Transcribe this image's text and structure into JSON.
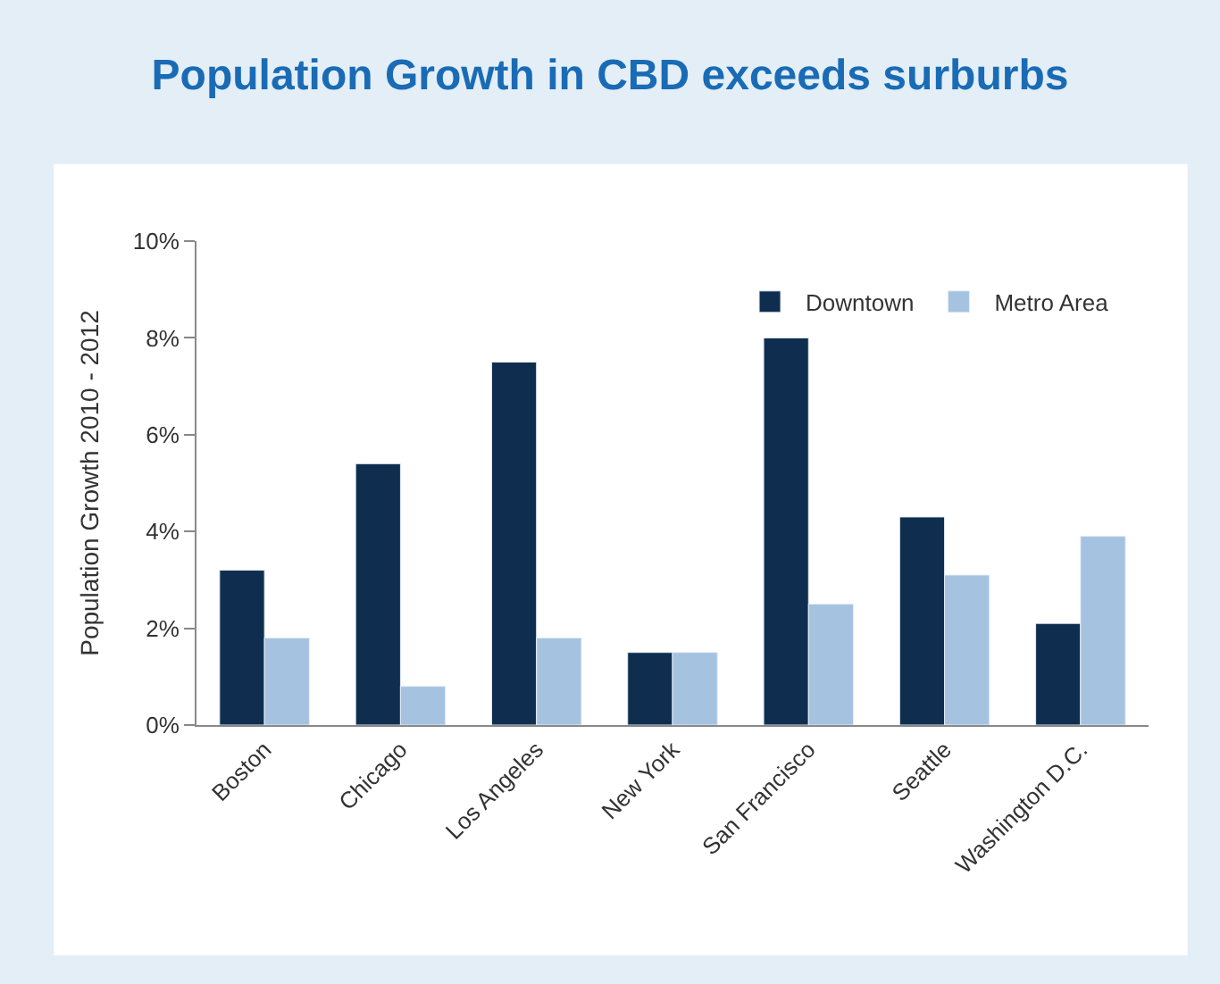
{
  "chart_data": {
    "type": "bar",
    "title": "Population Growth in CBD exceeds surburbs",
    "ylabel": "Population Growth 2010 - 2012",
    "categories": [
      "Boston",
      "Chicago",
      "Los Angeles",
      "New York",
      "San Francisco",
      "Seattle",
      "Washington D.C."
    ],
    "series": [
      {
        "name": "Downtown",
        "color": "#0f2e4f",
        "values": [
          3.2,
          5.4,
          7.5,
          1.5,
          8.0,
          4.3,
          2.1
        ]
      },
      {
        "name": "Metro Area",
        "color": "#a5c3e0",
        "values": [
          1.8,
          0.8,
          1.8,
          1.5,
          2.5,
          3.1,
          3.9
        ]
      }
    ],
    "ylim": [
      0,
      10
    ],
    "yticks": [
      {
        "value": 0,
        "label": "0%"
      },
      {
        "value": 2,
        "label": "2%"
      },
      {
        "value": 4,
        "label": "4%"
      },
      {
        "value": 6,
        "label": "6%"
      },
      {
        "value": 8,
        "label": "8%"
      },
      {
        "value": 10,
        "label": "10%"
      }
    ],
    "legend": "top right"
  }
}
